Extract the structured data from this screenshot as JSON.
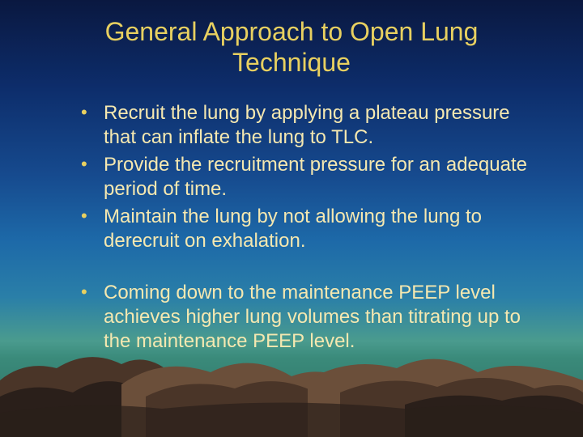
{
  "slide": {
    "title": "General Approach to Open Lung Technique",
    "title_color": "#e8d060",
    "bullet_color": "#e8d060",
    "text_color": "#f5e8b0",
    "title_fontsize": 32,
    "bullet_fontsize": 24,
    "bullets_group1": [
      "Recruit the lung by applying a plateau pressure that can inflate the lung to TLC.",
      "Provide the recruitment pressure for an adequate period of time.",
      "Maintain the lung by not allowing the lung to derecruit on exhalation."
    ],
    "bullets_group2": [
      "Coming down to the maintenance PEEP level achieves higher lung volumes than titrating up to the maintenance PEEP level."
    ],
    "background": {
      "gradient_stops": [
        "#0a1840",
        "#0d2d6b",
        "#164a8e",
        "#1d69a8",
        "#2a7fa8",
        "#4a9b8e",
        "#3a8a7a",
        "#2d6b5f"
      ],
      "mountain_fill_dark": "#2a1f1a",
      "mountain_fill_mid": "#4a3528",
      "mountain_fill_light": "#6b4f3a",
      "mountain_highlight": "#8a6845"
    }
  }
}
